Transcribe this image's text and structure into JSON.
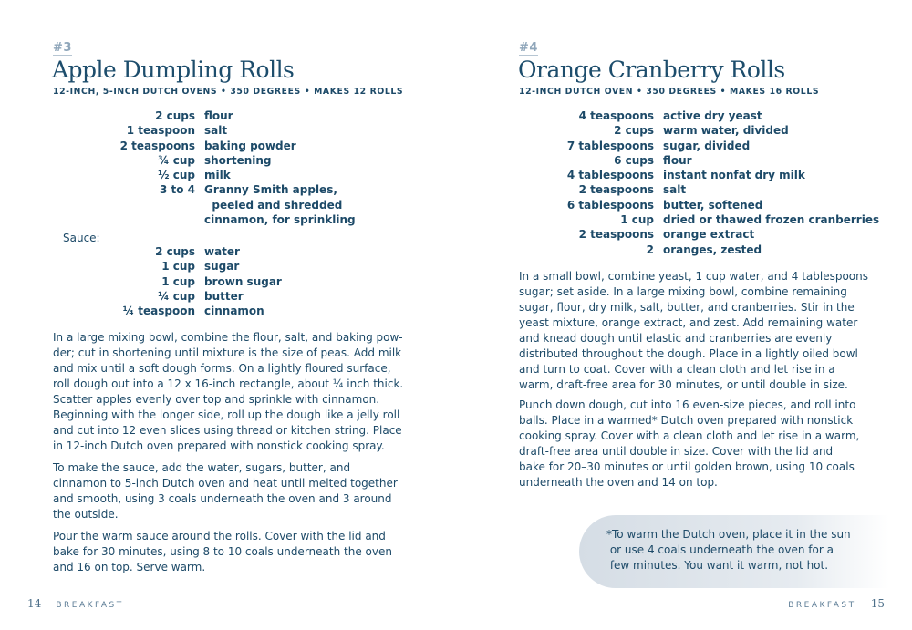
{
  "left": {
    "number": "#3",
    "title": "Apple Dumpling Rolls",
    "subtitle": "12-INCH, 5-INCH DUTCH OVENS • 350 DEGREES • MAKES 12 ROLLS",
    "ingredients": [
      {
        "amount": "2 cups",
        "item": "flour"
      },
      {
        "amount": "1 teaspoon",
        "item": "salt"
      },
      {
        "amount": "2 teaspoons",
        "item": "baking powder"
      },
      {
        "amount": "¾ cup",
        "item": "shortening"
      },
      {
        "amount": "½ cup",
        "item": "milk"
      },
      {
        "amount": "3 to 4",
        "item": "Granny Smith apples,"
      },
      {
        "amount": "",
        "item": "  peeled and shredded"
      },
      {
        "amount": "",
        "item": "cinnamon, for sprinkling"
      }
    ],
    "sauce_label": "Sauce:",
    "sauce": [
      {
        "amount": "2 cups",
        "item": "water"
      },
      {
        "amount": "1 cup",
        "item": "sugar"
      },
      {
        "amount": "1 cup",
        "item": "brown sugar"
      },
      {
        "amount": "¼ cup",
        "item": "butter"
      },
      {
        "amount": "¼ teaspoon",
        "item": "cinnamon"
      }
    ],
    "paragraphs": [
      [
        "In a large mixing bowl, combine the flour, salt, and baking pow-",
        "der; cut in shortening until mixture is the size of peas. Add milk",
        "and mix until a soft dough forms. On a lightly floured surface,",
        "roll dough out into a 12 x 16-inch rectangle, about ¼ inch thick.",
        "Scatter apples evenly over top and sprinkle with cinnamon.",
        "Beginning with the longer side, roll up the dough like a jelly roll",
        "and cut into 12 even slices using thread or kitchen string. Place",
        "in 12-inch Dutch oven prepared with nonstick cooking spray."
      ],
      [
        "To make the sauce, add the water, sugars, butter, and",
        "cinnamon to 5-inch Dutch oven and heat until melted together",
        "and smooth, using 3 coals underneath the oven and 3 around",
        "the outside."
      ],
      [
        "Pour the warm sauce around the rolls. Cover with the lid and",
        "bake for 30 minutes, using 8 to 10 coals underneath the oven",
        "and 16 on top. Serve warm."
      ]
    ],
    "footer": {
      "page": "14",
      "section": "BREAKFAST"
    }
  },
  "right": {
    "number": "#4",
    "title": "Orange Cranberry Rolls",
    "subtitle": "12-INCH DUTCH OVEN • 350 DEGREES • MAKES 16 ROLLS",
    "ingredients": [
      {
        "amount": "4 teaspoons",
        "item": "active dry yeast"
      },
      {
        "amount": "2 cups",
        "item": "warm water, divided"
      },
      {
        "amount": "7 tablespoons",
        "item": "sugar, divided"
      },
      {
        "amount": "6 cups",
        "item": "flour"
      },
      {
        "amount": "4 tablespoons",
        "item": "instant nonfat dry milk"
      },
      {
        "amount": "2 teaspoons",
        "item": "salt"
      },
      {
        "amount": "6 tablespoons",
        "item": "butter, softened"
      },
      {
        "amount": "1 cup",
        "item": "dried or thawed frozen cranberries"
      },
      {
        "amount": "2 teaspoons",
        "item": "orange extract"
      },
      {
        "amount": "2",
        "item": "oranges, zested"
      }
    ],
    "paragraphs": [
      [
        "In a small bowl, combine yeast, 1 cup water, and 4 tablespoons",
        "sugar; set aside. In a large mixing bowl, combine remaining",
        "sugar, flour, dry milk, salt, butter, and cranberries. Stir in the",
        "yeast mixture, orange extract, and zest. Add remaining water",
        "and knead dough until elastic and cranberries are evenly",
        "distributed throughout the dough. Place in a lightly oiled bowl",
        "and turn to coat. Cover with a clean cloth and let rise in a",
        "warm, draft-free area for 30 minutes, or until double in size."
      ],
      [
        "Punch down dough, cut into 16 even-size pieces, and roll into",
        "balls. Place in a warmed* Dutch oven prepared with nonstick",
        "cooking spray. Cover with a clean cloth and let rise in a warm,",
        "draft-free area until double in size. Cover with the lid and",
        "bake for 20–30 minutes or until golden brown, using 10 coals",
        "underneath the oven and 14 on top."
      ]
    ],
    "note": [
      "*To warm the Dutch oven, place it in the sun",
      " or use 4 coals underneath the oven for a",
      " few minutes. You want it warm, not hot."
    ],
    "footer": {
      "section": "BREAKFAST",
      "page": "15"
    }
  },
  "colors": {
    "text": "#1d4a68",
    "number": "#8fa6ba",
    "callout": "#dde4ea"
  }
}
